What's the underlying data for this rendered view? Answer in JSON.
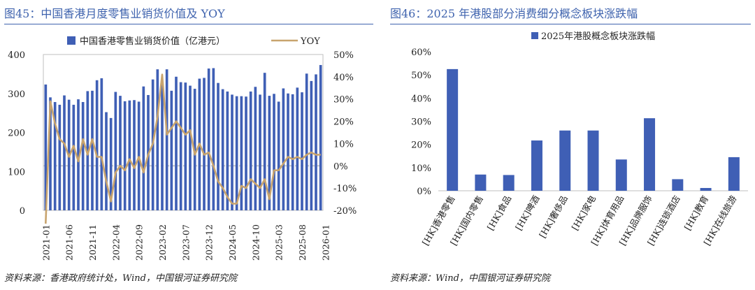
{
  "colors": {
    "title": "#3f63ae",
    "bar": "#3f5fb5",
    "line": "#c8a46e",
    "text": "#222222"
  },
  "left": {
    "title": "图45：中国香港月度零售业销货价值及 YOY",
    "source": "资料来源：香港政府统计处，Wind，中国银河证券研究院",
    "chart_data": {
      "type": "bar+line",
      "title": "中国香港月度零售业销货价值及 YOY",
      "series": [
        {
          "name": "中国香港零售业销货价值（亿港元）",
          "type": "bar",
          "axis": "left",
          "values": [
            323,
            290,
            278,
            271,
            295,
            284,
            271,
            285,
            278,
            306,
            307,
            334,
            339,
            252,
            237,
            304,
            294,
            280,
            282,
            283,
            279,
            318,
            296,
            336,
            362,
            331,
            362,
            307,
            343,
            329,
            328,
            320,
            312,
            338,
            340,
            364,
            365,
            327,
            311,
            305,
            297,
            293,
            293,
            292,
            305,
            317,
            297,
            353,
            294,
            299,
            279,
            313,
            300,
            298,
            315,
            303,
            351,
            332,
            349,
            373
          ]
        },
        {
          "name": "YOY",
          "type": "line",
          "axis": "right",
          "values": [
            -26,
            29,
            19,
            12,
            10,
            4,
            9,
            2,
            12,
            5,
            12,
            4,
            4,
            -7,
            -16,
            -3,
            0,
            -2,
            3,
            -1,
            4,
            -3,
            5,
            10,
            22,
            41,
            14,
            17,
            20,
            17,
            14,
            16,
            5,
            10,
            5,
            6,
            0,
            -7,
            -10,
            -14,
            -17,
            -17,
            -9,
            -10,
            -6,
            -8,
            -10,
            -6,
            -15,
            -2,
            -2,
            1,
            4,
            3,
            4,
            3,
            5,
            6,
            5,
            5
          ]
        }
      ],
      "x_tick_labels": [
        "2021-01",
        "2021-06",
        "2021-11",
        "2022-04",
        "2022-09",
        "2023-02",
        "2023-07",
        "2023-12",
        "2024-05",
        "2024-10",
        "2025-03",
        "2025-08",
        "2026-01"
      ],
      "y_left": {
        "ticks": [
          "0",
          "100",
          "200",
          "300",
          "400"
        ],
        "ylim": [
          0,
          400
        ]
      },
      "y_right": {
        "ticks": [
          "-20%",
          "-10%",
          "0%",
          "10%",
          "20%",
          "30%",
          "40%",
          "50%"
        ],
        "ylim": [
          -20,
          50
        ]
      },
      "legend": {
        "placement": "top"
      }
    }
  },
  "right": {
    "title": "图46：2025 年港股部分消费细分概念板块涨跌幅",
    "source": "资料来源：Wind，中国银河证券研究院",
    "chart_data": {
      "type": "bar",
      "title": "2025 年港股部分消费细分概念板块涨跌幅",
      "series_name": "2025年港股概念板块涨跌幅",
      "categories": [
        "[HK]香港零售",
        "[HK]国内零售",
        "[HK]食品",
        "[HK]啤酒",
        "[HK]奢侈品",
        "[HK]家电",
        "[HK]体育用品",
        "[HK]品牌服饰",
        "[HK]连锁酒店",
        "[HK]教育",
        "[HK]在线旅游"
      ],
      "values": [
        52.5,
        7.0,
        6.8,
        21.7,
        26.0,
        26.0,
        13.5,
        31.3,
        5.0,
        1.2,
        14.5
      ],
      "y_ticks": [
        "0%",
        "10%",
        "20%",
        "30%",
        "40%",
        "50%",
        "60%"
      ],
      "ylim": [
        0,
        60
      ],
      "legend": {
        "placement": "top"
      }
    }
  }
}
